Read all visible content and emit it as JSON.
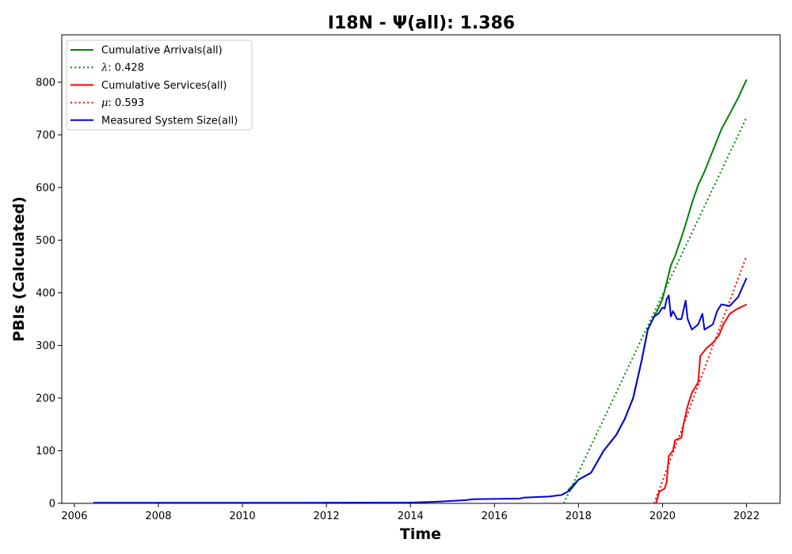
{
  "chart_data": {
    "type": "line",
    "title": "I18N -  Ψ(all): 1.386",
    "xlabel": "Time",
    "ylabel": "PBIs (Calculated)",
    "xlim": [
      2005.7,
      2022.8
    ],
    "ylim": [
      0,
      890
    ],
    "x_ticks": [
      2006,
      2008,
      2010,
      2012,
      2014,
      2016,
      2018,
      2020,
      2022
    ],
    "y_ticks": [
      0,
      100,
      200,
      300,
      400,
      500,
      600,
      700,
      800
    ],
    "grid": false,
    "legend_position": "top-left",
    "series": [
      {
        "name": "Cumulative Arrivals(all)",
        "color": "#008000",
        "style": "solid",
        "points": [
          [
            2017.75,
            25
          ],
          [
            2018.0,
            45
          ],
          [
            2018.3,
            58
          ],
          [
            2018.6,
            100
          ],
          [
            2018.9,
            130
          ],
          [
            2019.1,
            160
          ],
          [
            2019.3,
            200
          ],
          [
            2019.5,
            270
          ],
          [
            2019.65,
            330
          ],
          [
            2019.8,
            355
          ],
          [
            2019.9,
            370
          ],
          [
            2020.0,
            388
          ],
          [
            2020.1,
            420
          ],
          [
            2020.2,
            452
          ],
          [
            2020.3,
            470
          ],
          [
            2020.45,
            505
          ],
          [
            2020.55,
            530
          ],
          [
            2020.7,
            570
          ],
          [
            2020.85,
            605
          ],
          [
            2021.0,
            630
          ],
          [
            2021.2,
            670
          ],
          [
            2021.4,
            710
          ],
          [
            2021.6,
            740
          ],
          [
            2021.8,
            770
          ],
          [
            2022.0,
            805
          ]
        ]
      },
      {
        "name": "λ: 0.428",
        "label_prefix": "λ",
        "label_value": ": 0.428",
        "color": "#008000",
        "style": "dotted",
        "points": [
          [
            2017.65,
            0
          ],
          [
            2022.0,
            733
          ]
        ]
      },
      {
        "name": "Cumulative Services(all)",
        "color": "#ff0000",
        "style": "solid",
        "points": [
          [
            2019.85,
            0
          ],
          [
            2019.92,
            22
          ],
          [
            2020.05,
            28
          ],
          [
            2020.1,
            40
          ],
          [
            2020.15,
            90
          ],
          [
            2020.25,
            100
          ],
          [
            2020.3,
            120
          ],
          [
            2020.45,
            125
          ],
          [
            2020.5,
            150
          ],
          [
            2020.6,
            185
          ],
          [
            2020.7,
            210
          ],
          [
            2020.85,
            230
          ],
          [
            2020.9,
            280
          ],
          [
            2021.05,
            295
          ],
          [
            2021.2,
            305
          ],
          [
            2021.35,
            320
          ],
          [
            2021.45,
            340
          ],
          [
            2021.6,
            360
          ],
          [
            2021.75,
            368
          ],
          [
            2022.0,
            378
          ]
        ]
      },
      {
        "name": "μ: 0.593",
        "label_prefix": "μ",
        "label_value": ": 0.593",
        "color": "#ff0000",
        "style": "dotted",
        "points": [
          [
            2019.8,
            0
          ],
          [
            2022.0,
            470
          ]
        ]
      },
      {
        "name": "Measured System Size(all)",
        "color": "#0000dd",
        "style": "solid",
        "points": [
          [
            2006.45,
            1
          ],
          [
            2010.0,
            1
          ],
          [
            2014.0,
            1.5
          ],
          [
            2014.6,
            3
          ],
          [
            2015.3,
            6
          ],
          [
            2015.5,
            8
          ],
          [
            2016.6,
            9
          ],
          [
            2016.7,
            11
          ],
          [
            2017.3,
            13
          ],
          [
            2017.6,
            16
          ],
          [
            2017.8,
            25
          ],
          [
            2018.0,
            45
          ],
          [
            2018.3,
            58
          ],
          [
            2018.6,
            100
          ],
          [
            2018.9,
            130
          ],
          [
            2019.1,
            160
          ],
          [
            2019.3,
            200
          ],
          [
            2019.5,
            270
          ],
          [
            2019.65,
            330
          ],
          [
            2019.8,
            355
          ],
          [
            2019.9,
            360
          ],
          [
            2020.0,
            372
          ],
          [
            2020.05,
            370
          ],
          [
            2020.1,
            388
          ],
          [
            2020.15,
            395
          ],
          [
            2020.2,
            355
          ],
          [
            2020.25,
            365
          ],
          [
            2020.35,
            350
          ],
          [
            2020.45,
            350
          ],
          [
            2020.55,
            385
          ],
          [
            2020.6,
            350
          ],
          [
            2020.7,
            330
          ],
          [
            2020.85,
            340
          ],
          [
            2020.95,
            360
          ],
          [
            2021.0,
            330
          ],
          [
            2021.2,
            340
          ],
          [
            2021.3,
            365
          ],
          [
            2021.4,
            378
          ],
          [
            2021.6,
            375
          ],
          [
            2021.8,
            392
          ],
          [
            2022.0,
            428
          ]
        ]
      }
    ]
  }
}
